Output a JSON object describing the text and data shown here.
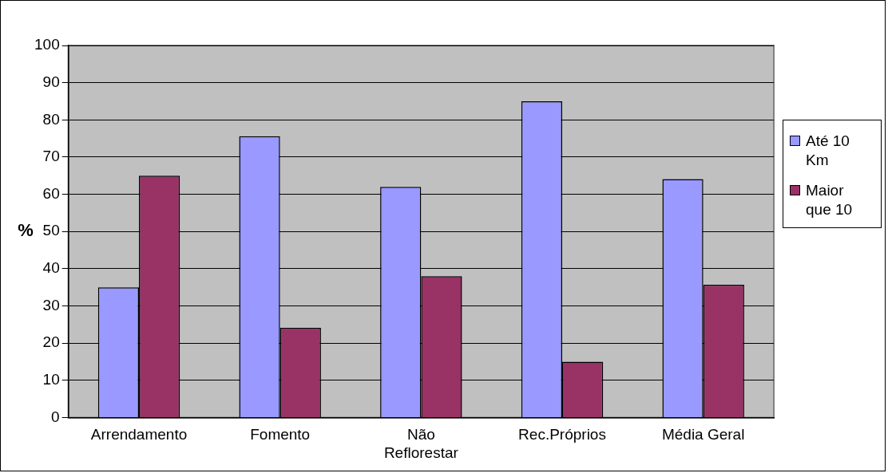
{
  "chart_data": {
    "type": "bar",
    "ylabel": "%",
    "categories": [
      "Arrendamento",
      "Fomento",
      "Não Reflorestar",
      "Rec.Próprios",
      "Média Geral"
    ],
    "series": [
      {
        "name": "Até 10 Km",
        "color": "#9999ff",
        "values": [
          35,
          75.6,
          62,
          85,
          64.1
        ]
      },
      {
        "name": "Maior que 10",
        "color": "#993366",
        "values": [
          65,
          24.1,
          38,
          15,
          35.7
        ]
      }
    ],
    "ylim": [
      0,
      100
    ],
    "yticks": [
      0,
      10,
      20,
      30,
      40,
      50,
      60,
      70,
      80,
      90,
      100
    ],
    "grid": "y",
    "legend": "right"
  }
}
